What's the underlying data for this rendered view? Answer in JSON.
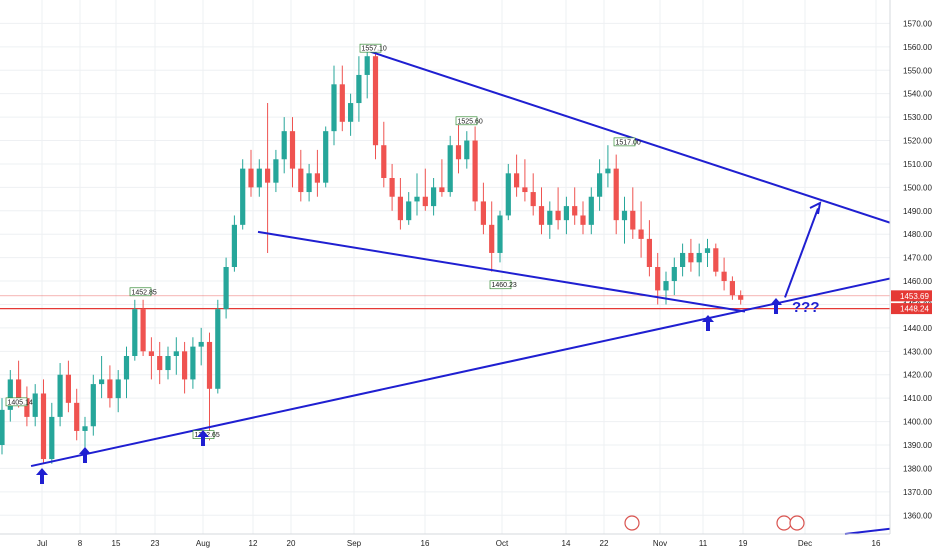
{
  "chart_data": {
    "type": "candlestick",
    "title": "",
    "xlabel": "",
    "ylabel": "",
    "ylim": [
      1352,
      1580
    ],
    "y_ticks": [
      1360,
      1370,
      1380,
      1390,
      1400,
      1410,
      1420,
      1430,
      1440,
      1450,
      1460,
      1470,
      1480,
      1490,
      1500,
      1510,
      1520,
      1530,
      1540,
      1550,
      1560,
      1570
    ],
    "x_tick_labels": [
      "Jul",
      "8",
      "15",
      "23",
      "Aug",
      "12",
      "20",
      "Sep",
      "16",
      "Oct",
      "14",
      "22",
      "Nov",
      "11",
      "19",
      "Dec",
      "16"
    ],
    "colors": {
      "up": "#26a69a",
      "down": "#ef5350",
      "trendline": "#1f1fd1",
      "level": "#e53935",
      "grid": "#eef0f3"
    },
    "price_labels": [
      {
        "text": "1405.14",
        "value": 1405.14
      },
      {
        "text": "1452.85",
        "value": 1452.85
      },
      {
        "text": "1557.10",
        "value": 1557.1
      },
      {
        "text": "1525.60",
        "value": 1525.6
      },
      {
        "text": "1517.00",
        "value": 1517.0
      },
      {
        "text": "1460.23",
        "value": 1460.23
      },
      {
        "text": "1392.65",
        "value": 1392.65
      }
    ],
    "horizontal_levels": [
      {
        "text": "1453.69",
        "value": 1453.69,
        "style": "thin"
      },
      {
        "text": "1448.24",
        "value": 1448.24,
        "style": "solid"
      }
    ],
    "annotation": "???",
    "candles": [
      [
        1390,
        1410,
        1386,
        1405
      ],
      [
        1405,
        1422,
        1400,
        1418
      ],
      [
        1418,
        1426,
        1406,
        1410
      ],
      [
        1410,
        1415,
        1398,
        1402
      ],
      [
        1402,
        1416,
        1398,
        1412
      ],
      [
        1412,
        1418,
        1382,
        1384
      ],
      [
        1384,
        1408,
        1382,
        1402
      ],
      [
        1402,
        1425,
        1398,
        1420
      ],
      [
        1420,
        1426,
        1404,
        1408
      ],
      [
        1408,
        1414,
        1392,
        1396
      ],
      [
        1396,
        1402,
        1386,
        1398
      ],
      [
        1398,
        1420,
        1394,
        1416
      ],
      [
        1416,
        1428,
        1410,
        1418
      ],
      [
        1418,
        1424,
        1406,
        1410
      ],
      [
        1410,
        1422,
        1404,
        1418
      ],
      [
        1418,
        1432,
        1410,
        1428
      ],
      [
        1428,
        1452,
        1426,
        1448
      ],
      [
        1448,
        1452,
        1428,
        1430
      ],
      [
        1430,
        1436,
        1418,
        1428
      ],
      [
        1428,
        1434,
        1416,
        1422
      ],
      [
        1422,
        1432,
        1418,
        1428
      ],
      [
        1428,
        1436,
        1420,
        1430
      ],
      [
        1430,
        1434,
        1412,
        1418
      ],
      [
        1418,
        1436,
        1414,
        1432
      ],
      [
        1432,
        1440,
        1424,
        1434
      ],
      [
        1434,
        1438,
        1392,
        1414
      ],
      [
        1414,
        1452,
        1412,
        1448
      ],
      [
        1448,
        1470,
        1444,
        1466
      ],
      [
        1466,
        1488,
        1464,
        1484
      ],
      [
        1484,
        1512,
        1482,
        1508
      ],
      [
        1508,
        1516,
        1496,
        1500
      ],
      [
        1500,
        1512,
        1496,
        1508
      ],
      [
        1508,
        1536,
        1472,
        1502
      ],
      [
        1502,
        1516,
        1498,
        1512
      ],
      [
        1512,
        1530,
        1506,
        1524
      ],
      [
        1524,
        1530,
        1500,
        1508
      ],
      [
        1508,
        1516,
        1494,
        1498
      ],
      [
        1498,
        1510,
        1494,
        1506
      ],
      [
        1506,
        1516,
        1496,
        1502
      ],
      [
        1502,
        1526,
        1500,
        1524
      ],
      [
        1524,
        1552,
        1518,
        1544
      ],
      [
        1544,
        1552,
        1524,
        1528
      ],
      [
        1528,
        1540,
        1522,
        1536
      ],
      [
        1536,
        1556,
        1528,
        1548
      ],
      [
        1548,
        1560,
        1538,
        1556
      ],
      [
        1556,
        1560,
        1512,
        1518
      ],
      [
        1518,
        1528,
        1500,
        1504
      ],
      [
        1504,
        1510,
        1490,
        1496
      ],
      [
        1496,
        1504,
        1482,
        1486
      ],
      [
        1486,
        1498,
        1484,
        1494
      ],
      [
        1494,
        1506,
        1488,
        1496
      ],
      [
        1496,
        1508,
        1490,
        1492
      ],
      [
        1492,
        1504,
        1488,
        1500
      ],
      [
        1500,
        1512,
        1496,
        1498
      ],
      [
        1498,
        1522,
        1496,
        1518
      ],
      [
        1518,
        1528,
        1506,
        1512
      ],
      [
        1512,
        1524,
        1508,
        1520
      ],
      [
        1520,
        1526,
        1490,
        1494
      ],
      [
        1494,
        1502,
        1480,
        1484
      ],
      [
        1484,
        1494,
        1464,
        1472
      ],
      [
        1472,
        1490,
        1468,
        1488
      ],
      [
        1488,
        1510,
        1486,
        1506
      ],
      [
        1506,
        1514,
        1496,
        1500
      ],
      [
        1500,
        1512,
        1494,
        1498
      ],
      [
        1498,
        1506,
        1488,
        1492
      ],
      [
        1492,
        1500,
        1480,
        1484
      ],
      [
        1484,
        1494,
        1478,
        1490
      ],
      [
        1490,
        1500,
        1482,
        1486
      ],
      [
        1486,
        1496,
        1480,
        1492
      ],
      [
        1492,
        1500,
        1484,
        1488
      ],
      [
        1488,
        1494,
        1480,
        1484
      ],
      [
        1484,
        1500,
        1480,
        1496
      ],
      [
        1496,
        1512,
        1490,
        1506
      ],
      [
        1506,
        1518,
        1500,
        1508
      ],
      [
        1508,
        1514,
        1480,
        1486
      ],
      [
        1486,
        1496,
        1476,
        1490
      ],
      [
        1490,
        1500,
        1478,
        1482
      ],
      [
        1482,
        1494,
        1470,
        1478
      ],
      [
        1478,
        1486,
        1462,
        1466
      ],
      [
        1466,
        1472,
        1450,
        1456
      ],
      [
        1456,
        1464,
        1450,
        1460
      ],
      [
        1460,
        1470,
        1454,
        1466
      ],
      [
        1466,
        1476,
        1462,
        1472
      ],
      [
        1472,
        1478,
        1464,
        1468
      ],
      [
        1468,
        1476,
        1462,
        1472
      ],
      [
        1472,
        1478,
        1466,
        1474
      ],
      [
        1474,
        1476,
        1462,
        1464
      ],
      [
        1464,
        1470,
        1456,
        1460
      ],
      [
        1460,
        1462,
        1452,
        1454
      ],
      [
        1454,
        1456,
        1450,
        1452
      ]
    ]
  }
}
